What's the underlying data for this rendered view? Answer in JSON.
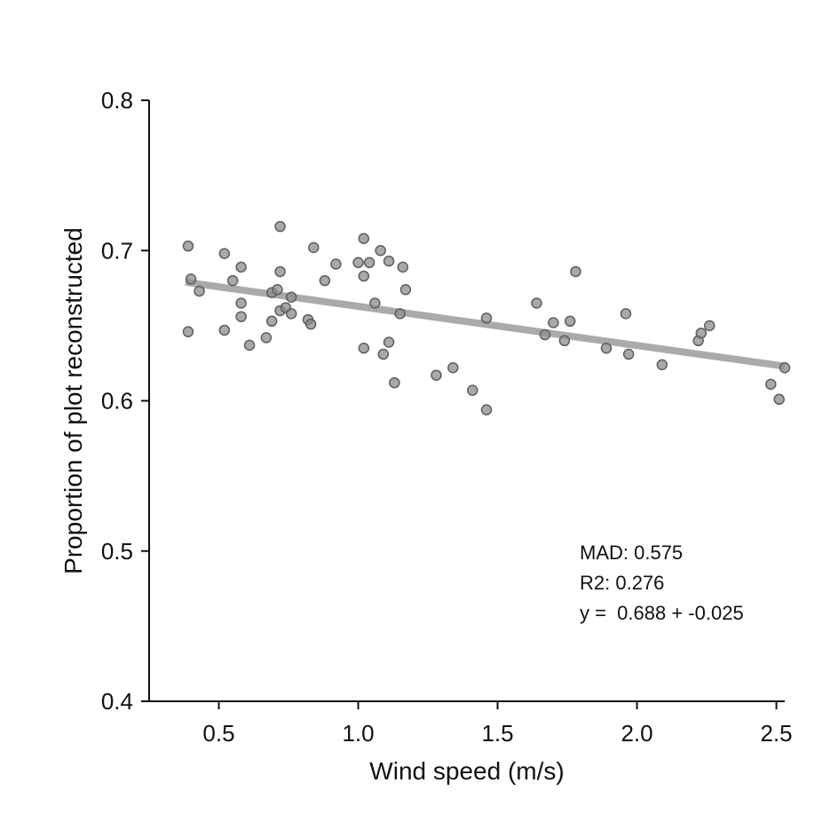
{
  "chart_data": {
    "type": "scatter",
    "xlabel": "Wind speed (m/s)",
    "ylabel": "Proportion of plot reconstructed",
    "xlim": [
      0.25,
      2.53
    ],
    "ylim": [
      0.4,
      0.8
    ],
    "x_ticks": [
      {
        "value": 0.5,
        "label": "0.5"
      },
      {
        "value": 1.0,
        "label": "1.0"
      },
      {
        "value": 1.5,
        "label": "1.5"
      },
      {
        "value": 2.0,
        "label": "2.0"
      },
      {
        "value": 2.5,
        "label": "2.5"
      }
    ],
    "y_ticks": [
      {
        "value": 0.4,
        "label": "0.4"
      },
      {
        "value": 0.5,
        "label": "0.5"
      },
      {
        "value": 0.6,
        "label": "0.6"
      },
      {
        "value": 0.7,
        "label": "0.7"
      },
      {
        "value": 0.8,
        "label": "0.8"
      }
    ],
    "grid": false,
    "points": [
      {
        "x": 0.39,
        "y": 0.703
      },
      {
        "x": 0.4,
        "y": 0.681
      },
      {
        "x": 0.43,
        "y": 0.673
      },
      {
        "x": 0.39,
        "y": 0.646
      },
      {
        "x": 0.52,
        "y": 0.698
      },
      {
        "x": 0.55,
        "y": 0.68
      },
      {
        "x": 0.58,
        "y": 0.689
      },
      {
        "x": 0.58,
        "y": 0.665
      },
      {
        "x": 0.58,
        "y": 0.656
      },
      {
        "x": 0.52,
        "y": 0.647
      },
      {
        "x": 0.61,
        "y": 0.637
      },
      {
        "x": 0.67,
        "y": 0.642
      },
      {
        "x": 0.69,
        "y": 0.653
      },
      {
        "x": 0.69,
        "y": 0.672
      },
      {
        "x": 0.71,
        "y": 0.674
      },
      {
        "x": 0.72,
        "y": 0.686
      },
      {
        "x": 0.72,
        "y": 0.716
      },
      {
        "x": 0.72,
        "y": 0.66
      },
      {
        "x": 0.74,
        "y": 0.662
      },
      {
        "x": 0.76,
        "y": 0.669
      },
      {
        "x": 0.76,
        "y": 0.658
      },
      {
        "x": 0.82,
        "y": 0.654
      },
      {
        "x": 0.83,
        "y": 0.651
      },
      {
        "x": 0.84,
        "y": 0.702
      },
      {
        "x": 0.88,
        "y": 0.68
      },
      {
        "x": 0.92,
        "y": 0.691
      },
      {
        "x": 1.0,
        "y": 0.692
      },
      {
        "x": 1.02,
        "y": 0.708
      },
      {
        "x": 1.02,
        "y": 0.683
      },
      {
        "x": 1.04,
        "y": 0.692
      },
      {
        "x": 1.08,
        "y": 0.7
      },
      {
        "x": 1.11,
        "y": 0.693
      },
      {
        "x": 1.06,
        "y": 0.665
      },
      {
        "x": 1.16,
        "y": 0.689
      },
      {
        "x": 1.17,
        "y": 0.674
      },
      {
        "x": 1.15,
        "y": 0.658
      },
      {
        "x": 1.02,
        "y": 0.635
      },
      {
        "x": 1.09,
        "y": 0.631
      },
      {
        "x": 1.11,
        "y": 0.639
      },
      {
        "x": 1.13,
        "y": 0.612
      },
      {
        "x": 1.28,
        "y": 0.617
      },
      {
        "x": 1.34,
        "y": 0.622
      },
      {
        "x": 1.41,
        "y": 0.607
      },
      {
        "x": 1.46,
        "y": 0.594
      },
      {
        "x": 1.46,
        "y": 0.655
      },
      {
        "x": 1.64,
        "y": 0.665
      },
      {
        "x": 1.67,
        "y": 0.644
      },
      {
        "x": 1.7,
        "y": 0.652
      },
      {
        "x": 1.74,
        "y": 0.64
      },
      {
        "x": 1.76,
        "y": 0.653
      },
      {
        "x": 1.78,
        "y": 0.686
      },
      {
        "x": 1.89,
        "y": 0.635
      },
      {
        "x": 1.96,
        "y": 0.658
      },
      {
        "x": 1.97,
        "y": 0.631
      },
      {
        "x": 2.09,
        "y": 0.624
      },
      {
        "x": 2.22,
        "y": 0.64
      },
      {
        "x": 2.23,
        "y": 0.645
      },
      {
        "x": 2.26,
        "y": 0.65
      },
      {
        "x": 2.48,
        "y": 0.611
      },
      {
        "x": 2.51,
        "y": 0.601
      },
      {
        "x": 2.53,
        "y": 0.622
      }
    ],
    "fit_line": {
      "x": [
        0.38,
        2.53
      ],
      "y": [
        0.679,
        0.623
      ]
    },
    "annotations": [
      "MAD: 0.575",
      "R2: 0.276",
      "y =  0.688 + -0.025"
    ],
    "annotation_placement": "bottom-right",
    "colors": {
      "points": "#8c8c8c",
      "point_edge": "#5e5e5e",
      "fit_line": "#aaaaaa",
      "axis": "#111111"
    }
  }
}
